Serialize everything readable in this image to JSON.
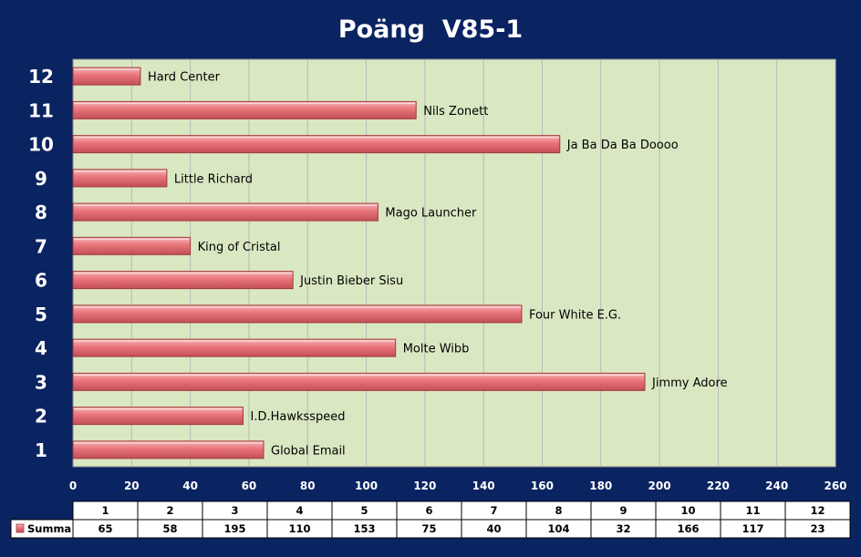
{
  "chart_data": {
    "type": "bar",
    "orientation": "horizontal",
    "title": "Poäng  V85-1",
    "categories": [
      "1",
      "2",
      "3",
      "4",
      "5",
      "6",
      "7",
      "8",
      "9",
      "10",
      "11",
      "12"
    ],
    "series": [
      {
        "name": "Summa",
        "values": [
          65,
          58,
          195,
          110,
          153,
          75,
          40,
          104,
          32,
          166,
          117,
          23
        ],
        "color": "#e8737a"
      }
    ],
    "bar_labels": [
      "Global Email",
      "I.D.Hawksspeed",
      "Jimmy Adore",
      "Molte Wibb",
      "Four White E.G.",
      "Justin Bieber Sisu",
      "King of Cristal",
      "Mago Launcher",
      "Little Richard",
      "Ja Ba Da Ba Doooo",
      "Nils Zonett",
      "Hard Center"
    ],
    "xlim": [
      0,
      260
    ],
    "xticks": [
      0,
      20,
      40,
      60,
      80,
      100,
      120,
      140,
      160,
      180,
      200,
      220,
      240,
      260
    ],
    "grid": true,
    "data_table": true,
    "colors": {
      "background": "#0a2361",
      "plot_area": "#d9e8c2",
      "bar": "#e8737a",
      "bar_edge": "#a33a3a",
      "gridline": "#b8b8b8"
    }
  }
}
